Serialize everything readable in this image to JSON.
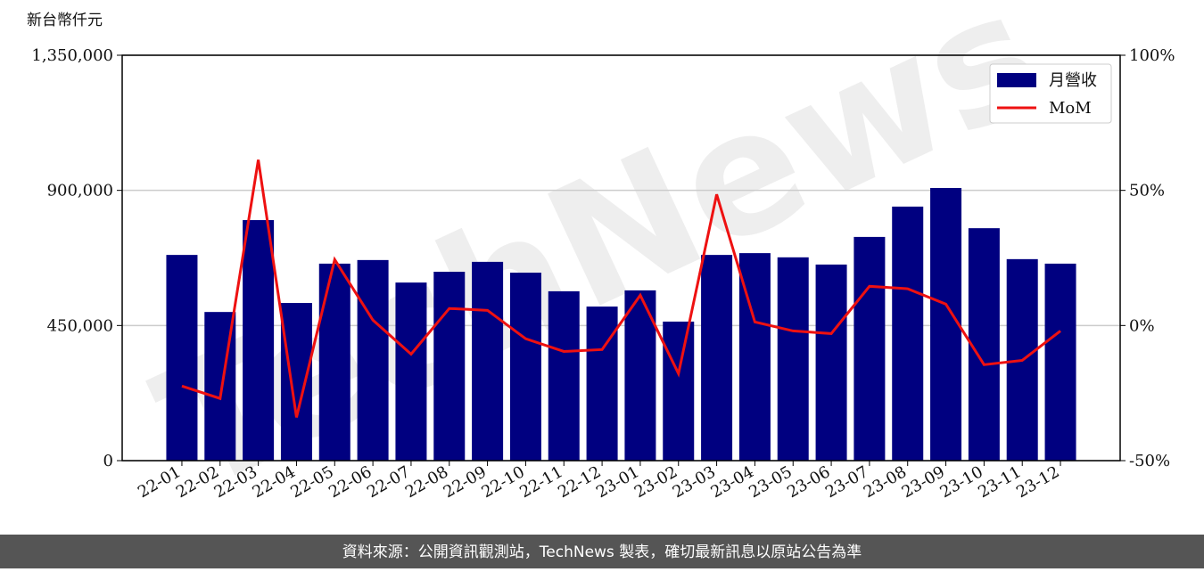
{
  "chart_data": {
    "type": "bar-line",
    "y_label": "新台幣仟元",
    "watermark": "TechNews",
    "footer": "資料來源：公開資訊觀測站，TechNews 製表，確切最新訊息以原站公告為準",
    "categories": [
      "22-01",
      "22-02",
      "22-03",
      "22-04",
      "22-05",
      "22-06",
      "22-07",
      "22-08",
      "22-09",
      "22-10",
      "22-11",
      "22-12",
      "23-01",
      "23-02",
      "23-03",
      "23-04",
      "23-05",
      "23-06",
      "23-07",
      "23-08",
      "23-09",
      "23-10",
      "23-11",
      "23-12"
    ],
    "series": [
      {
        "name": "月營收",
        "color": "#000080",
        "type": "bar",
        "values": [
          685000,
          495000,
          801000,
          525000,
          656000,
          668000,
          593000,
          629000,
          662000,
          626000,
          564000,
          513000,
          567000,
          463000,
          685000,
          691000,
          677000,
          653000,
          745000,
          846000,
          908000,
          774000,
          671000,
          656000
        ]
      },
      {
        "name": "MoM",
        "color": "#ee1111",
        "type": "line",
        "axis": "y2",
        "values": [
          -22.4,
          -27,
          61.3,
          -34,
          24.4,
          2,
          -10.6,
          6.3,
          5.6,
          -4.9,
          -9.6,
          -8.9,
          11.2,
          -17.8,
          48.5,
          1.3,
          -2,
          -3,
          14.5,
          13.6,
          7.9,
          -14.5,
          -12.9,
          -2
        ]
      }
    ],
    "ylim": [
      0,
      1350000
    ],
    "yticks": [
      0,
      {
        "value": 450000,
        "label": "450,000"
      },
      {
        "value": 900000,
        "label": "900,000"
      },
      {
        "value": 1350000,
        "label": "1,350,000"
      }
    ],
    "y2lim": [
      -50,
      100
    ],
    "y2ticks": [
      {
        "value": -50,
        "label": "-50%"
      },
      {
        "value": 0,
        "label": "0%"
      },
      {
        "value": 50,
        "label": "50%"
      },
      {
        "value": 100,
        "label": "100%"
      }
    ],
    "grid": true,
    "legend": "upper right"
  }
}
